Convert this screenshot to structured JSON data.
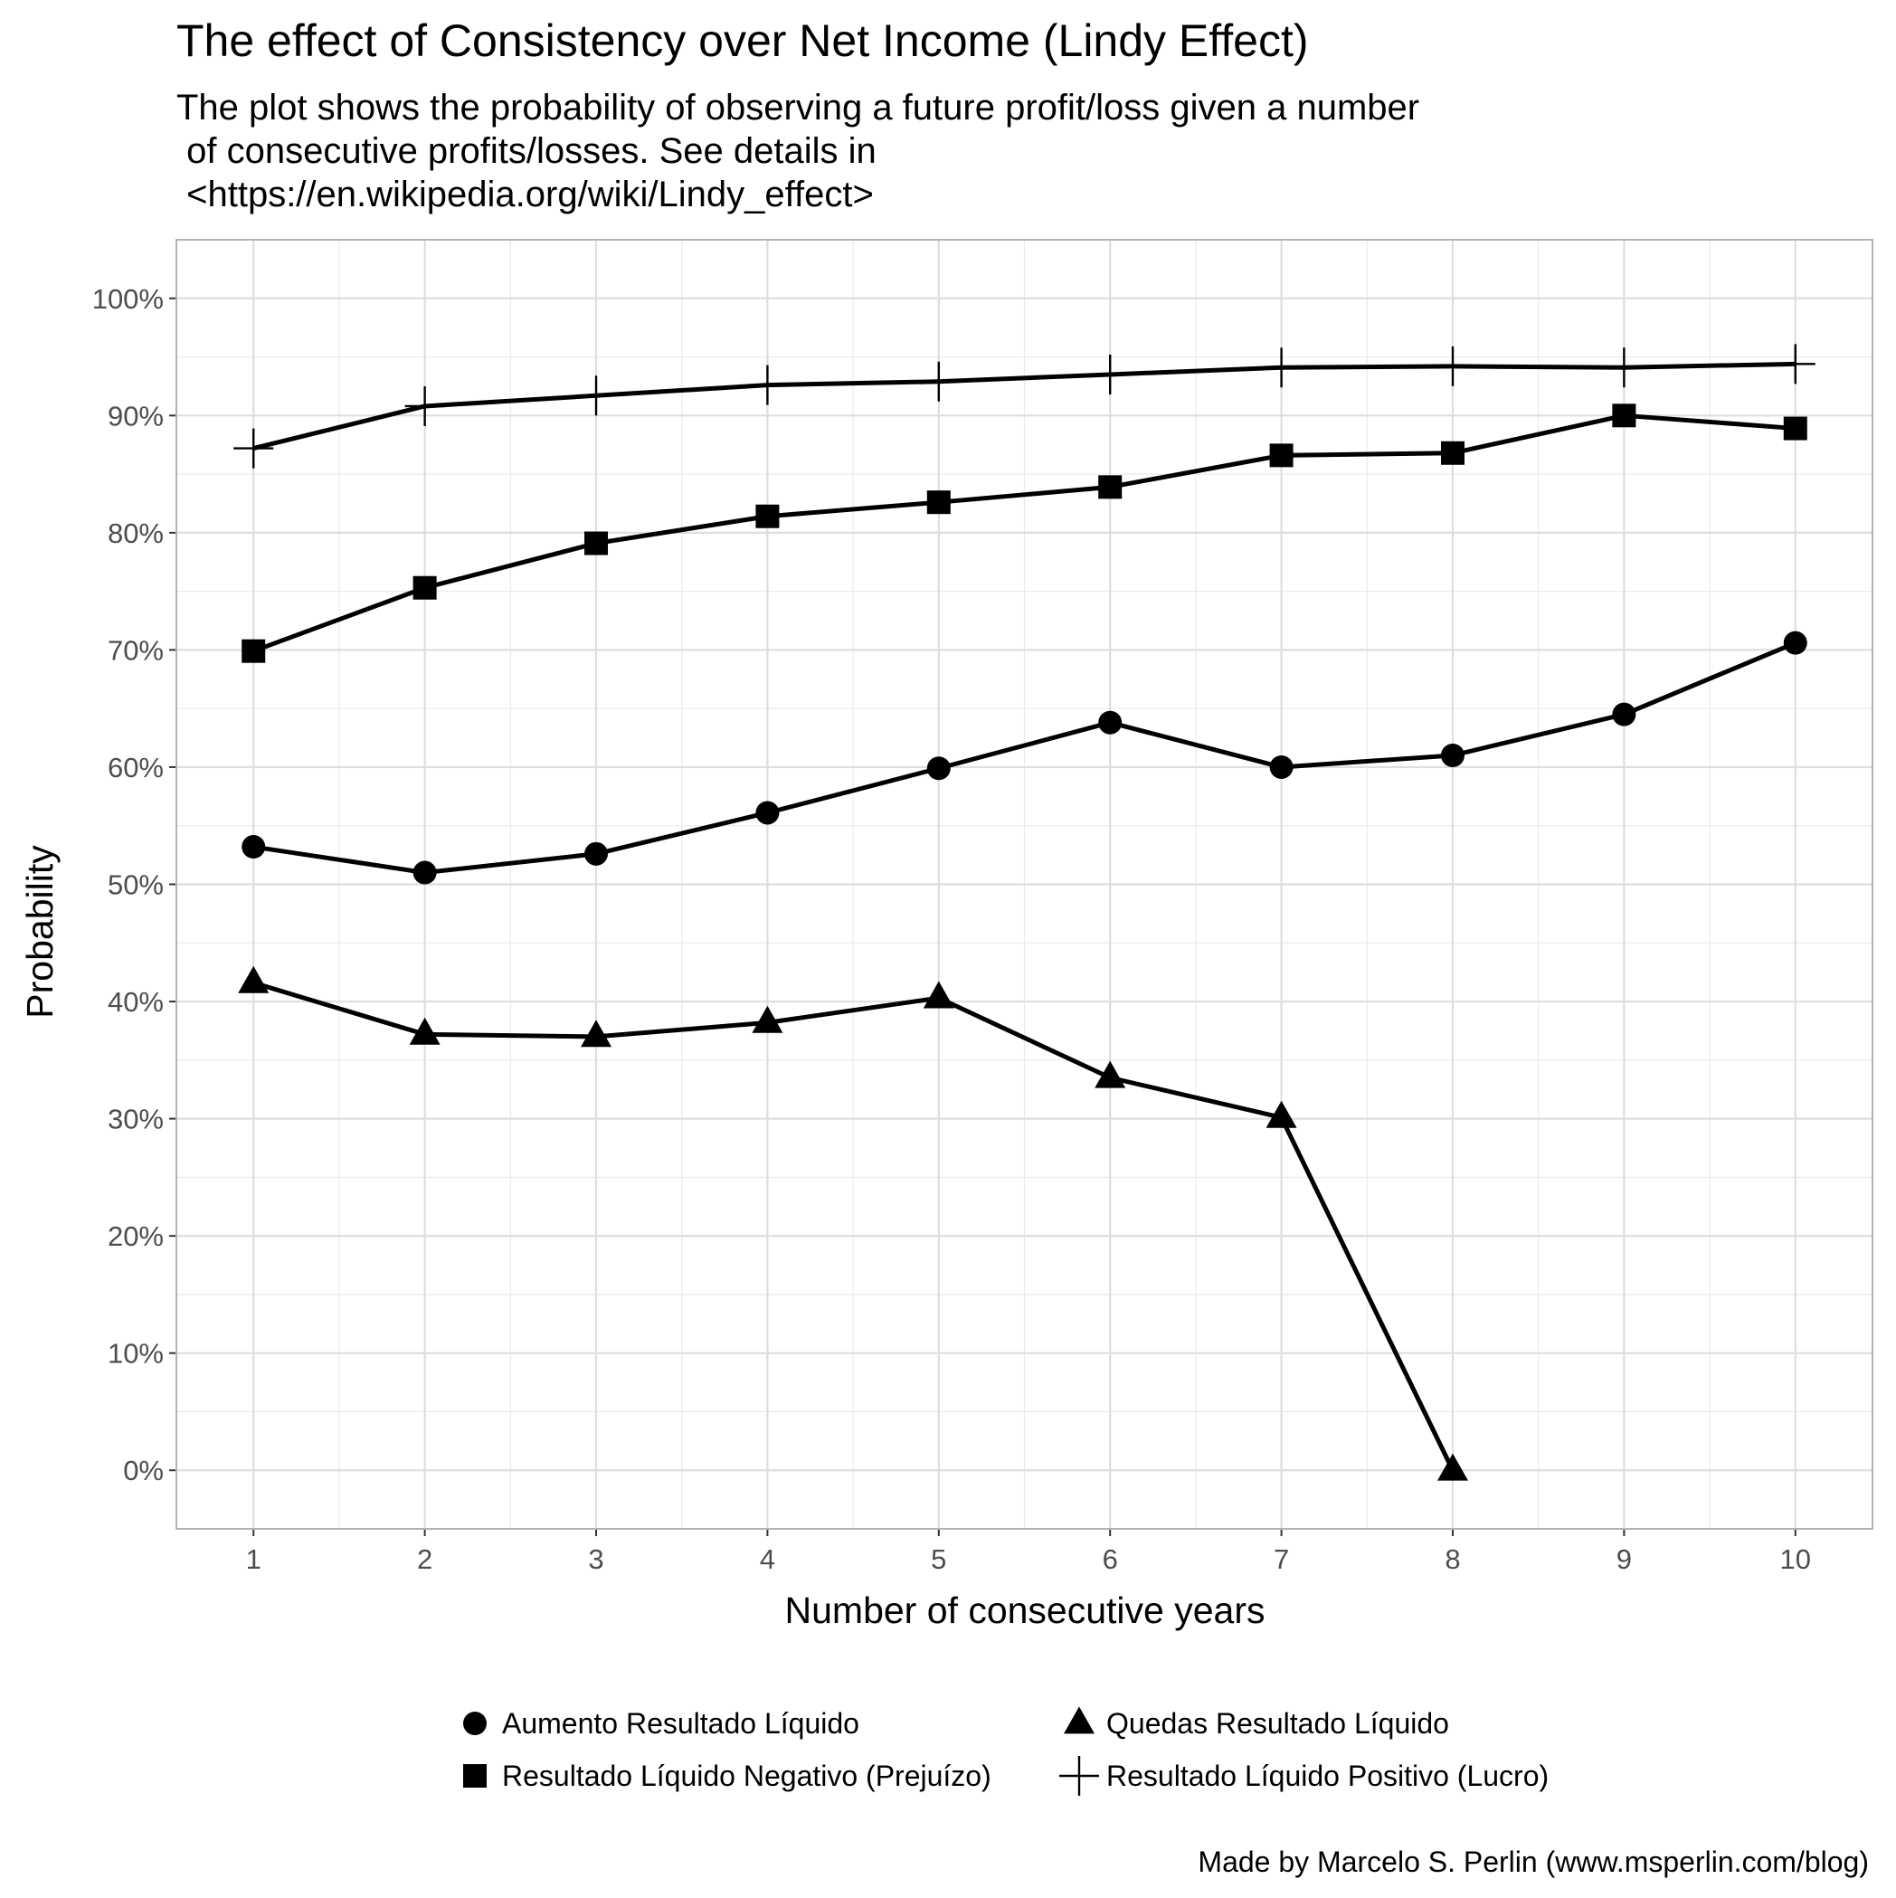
{
  "chart_data": {
    "type": "line",
    "title": "The effect of Consistency over Net Income (Lindy Effect)",
    "subtitle": [
      "The plot shows the probability of observing a future profit/loss given a number",
      " of consecutive profits/losses. See details in",
      " <https://en.wikipedia.org/wiki/Lindy_effect>"
    ],
    "xlabel": "Number of consecutive years",
    "ylabel": "Probability",
    "caption": "Made by Marcelo S. Perlin (www.msperlin.com/blog)",
    "x": [
      1,
      2,
      3,
      4,
      5,
      6,
      7,
      8,
      9,
      10
    ],
    "xticks": [
      "1",
      "2",
      "3",
      "4",
      "5",
      "6",
      "7",
      "8",
      "9",
      "10"
    ],
    "yticks": [
      0,
      10,
      20,
      30,
      40,
      50,
      60,
      70,
      80,
      90,
      100
    ],
    "ytick_labels": [
      "0%",
      "10%",
      "20%",
      "30%",
      "40%",
      "50%",
      "60%",
      "70%",
      "80%",
      "90%",
      "100%"
    ],
    "xlim": [
      0.55,
      10.45
    ],
    "ylim": [
      -5,
      105
    ],
    "grid": true,
    "legend_position": "bottom",
    "series": [
      {
        "name": "Aumento Resultado Líquido",
        "shape": "circle",
        "values": [
          53.2,
          51.0,
          52.6,
          56.1,
          59.9,
          63.8,
          60.0,
          61.0,
          64.5,
          70.6
        ]
      },
      {
        "name": "Quedas Resultado Líquido",
        "shape": "triangle",
        "values": [
          41.6,
          37.2,
          37.0,
          38.2,
          40.3,
          33.5,
          30.1,
          0.0,
          null,
          null
        ]
      },
      {
        "name": "Resultado Líquido Negativo (Prejuízo)",
        "shape": "square",
        "values": [
          69.9,
          75.3,
          79.1,
          81.4,
          82.6,
          83.9,
          86.6,
          86.8,
          90.0,
          88.9
        ]
      },
      {
        "name": "Resultado Líquido Positivo (Lucro)",
        "shape": "plus",
        "values": [
          87.2,
          90.8,
          91.7,
          92.6,
          92.9,
          93.5,
          94.1,
          94.2,
          94.1,
          94.4
        ]
      }
    ],
    "colors": {
      "line": "#000000",
      "grid": "#ebebeb",
      "border": "#b3b3b3",
      "tick_text": "#4d4d4d"
    }
  }
}
